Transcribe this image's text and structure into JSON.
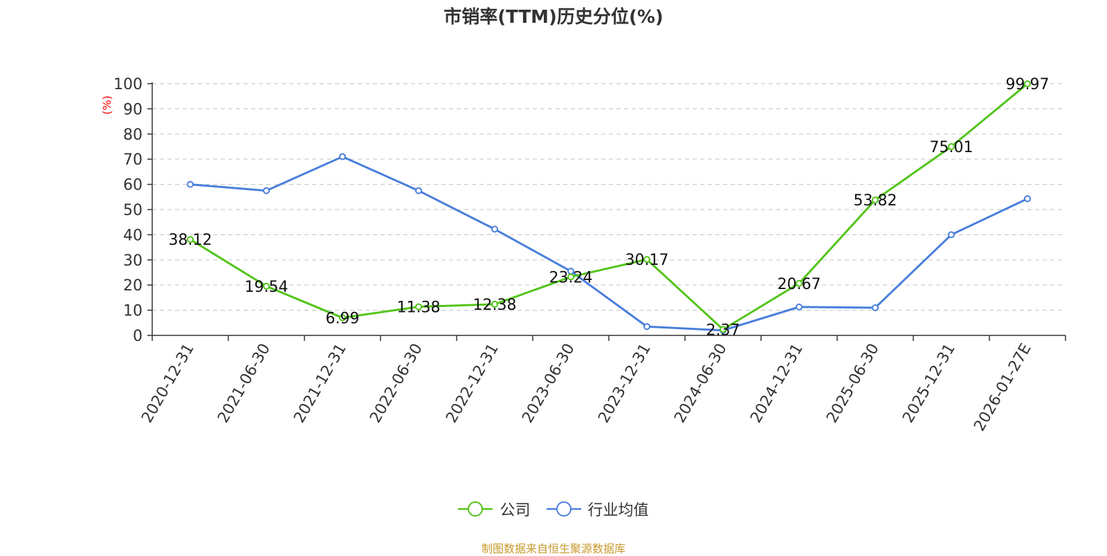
{
  "title": "市销率(TTM)历史分位(%)",
  "source": "制图数据来自恒生聚源数据库",
  "chart_data": {
    "type": "line",
    "title": "市销率(TTM)历史分位(%)",
    "ylabel": "(%)",
    "xlabel": "",
    "ylim": [
      0,
      100
    ],
    "yticks": [
      0,
      10,
      20,
      30,
      40,
      50,
      60,
      70,
      80,
      90,
      100
    ],
    "grid": true,
    "legend_position": "bottom",
    "categories": [
      "2020-12-31",
      "2021-06-30",
      "2021-12-31",
      "2022-06-30",
      "2022-12-31",
      "2023-06-30",
      "2023-12-31",
      "2024-06-30",
      "2024-12-31",
      "2025-06-30",
      "2025-12-31",
      "2026-01-27E"
    ],
    "series": [
      {
        "name": "公司",
        "color": "#52c41a",
        "show_labels": true,
        "values": [
          38.12,
          19.54,
          6.99,
          11.38,
          12.38,
          23.24,
          30.17,
          2.37,
          20.67,
          53.82,
          75.01,
          99.97
        ]
      },
      {
        "name": "行业均值",
        "color": "#4a7fdc",
        "show_labels": false,
        "values": [
          60.0,
          57.5,
          71.0,
          57.5,
          42.2,
          25.5,
          3.5,
          2.0,
          11.3,
          11.0,
          40.0,
          54.3
        ]
      }
    ]
  }
}
